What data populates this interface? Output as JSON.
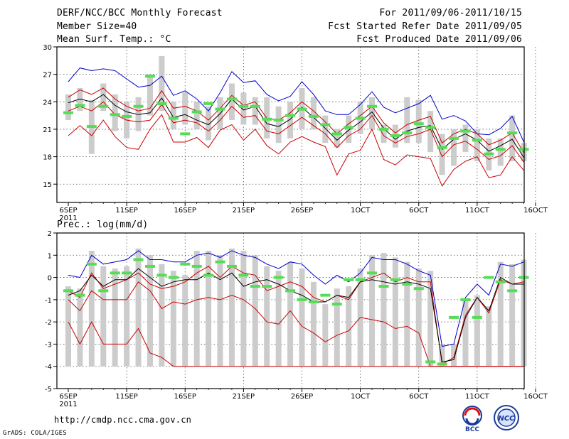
{
  "header": {
    "title": "DERF/NCC/BCC Monthly Forecast",
    "member_size": "Member Size=40",
    "period": "For 2011/09/06-2011/10/15",
    "fcst_started": "Fcst Started Refer Date 2011/09/05",
    "fcst_produced": "Fcst Produced Date 2011/09/06"
  },
  "footer": {
    "url": "http://cmdp.ncc.cma.gov.cn",
    "grads_credit": "GrADS: COLA/IGES",
    "logo1_label": "BCC",
    "logo2_label": "NCC"
  },
  "colors": {
    "max_line": "#0000cc",
    "min_line": "#cc0000",
    "mean_line": "#000000",
    "range_bar": "#cccccc",
    "marker": "#55dd55"
  },
  "chart_data": [
    {
      "type": "line",
      "title": "Mean Surf. Temp.: °C",
      "n_days": 40,
      "ylim": [
        13,
        30
      ],
      "yticks": [
        15,
        18,
        21,
        24,
        27,
        30
      ],
      "xtick_labels": [
        "6SEP",
        "11SEP",
        "16SEP",
        "21SEP",
        "26SEP",
        "1OCT",
        "6OCT",
        "11OCT",
        "16OCT"
      ],
      "year_label": "2011",
      "series": [
        {
          "name": "max",
          "values": [
            26.2,
            27.7,
            27.4,
            27.6,
            27.4,
            26.5,
            25.6,
            25.8,
            26.8,
            24.7,
            25.2,
            24.3,
            23.0,
            25.0,
            27.3,
            26.1,
            26.3,
            24.8,
            24.1,
            24.6,
            26.2,
            24.8,
            23.0,
            22.6,
            22.6,
            23.7,
            25.1,
            23.4,
            22.8,
            23.3,
            23.8,
            24.7,
            22.1,
            22.5,
            21.9,
            20.5,
            20.4,
            21.1,
            22.4,
            19.6
          ]
        },
        {
          "name": "upper",
          "values": [
            24.5,
            25.3,
            24.8,
            25.5,
            24.3,
            23.5,
            23.0,
            23.3,
            25.2,
            23.3,
            23.5,
            23.0,
            22.0,
            23.3,
            24.7,
            23.6,
            24.0,
            22.2,
            22.0,
            22.8,
            24.0,
            23.0,
            21.8,
            20.5,
            21.6,
            22.5,
            23.5,
            21.7,
            20.6,
            21.5,
            22.0,
            22.4,
            19.5,
            20.5,
            21.0,
            20.5,
            19.3,
            19.8,
            20.6,
            18.4
          ]
        },
        {
          "name": "mean",
          "values": [
            23.9,
            24.3,
            24.0,
            24.8,
            23.6,
            22.9,
            22.6,
            22.8,
            24.4,
            22.3,
            22.6,
            22.0,
            21.5,
            22.7,
            24.3,
            23.1,
            23.5,
            21.6,
            21.3,
            22.1,
            23.4,
            22.3,
            21.1,
            19.8,
            20.9,
            21.8,
            22.9,
            21.1,
            19.9,
            20.8,
            21.2,
            21.4,
            18.8,
            19.9,
            20.5,
            19.8,
            18.6,
            19.2,
            19.9,
            17.9
          ]
        },
        {
          "name": "lower",
          "values": [
            23.0,
            23.5,
            23.0,
            24.0,
            22.6,
            22.0,
            21.8,
            22.0,
            23.7,
            21.7,
            22.0,
            21.7,
            20.8,
            22.0,
            23.5,
            22.3,
            22.5,
            20.8,
            20.5,
            21.4,
            22.3,
            21.4,
            20.5,
            19.0,
            20.3,
            21.0,
            22.5,
            20.3,
            19.5,
            20.2,
            20.5,
            21.0,
            18.0,
            19.3,
            19.7,
            18.8,
            17.7,
            18.1,
            19.2,
            17.4
          ]
        },
        {
          "name": "min",
          "values": [
            20.3,
            21.4,
            20.3,
            22.0,
            20.2,
            19.0,
            18.8,
            21.0,
            22.6,
            19.6,
            19.6,
            20.1,
            19.0,
            20.9,
            21.5,
            19.8,
            21.0,
            19.2,
            18.3,
            19.6,
            20.2,
            19.6,
            19.1,
            16.0,
            18.3,
            18.7,
            21.0,
            17.7,
            17.1,
            18.2,
            18.0,
            17.8,
            14.8,
            16.6,
            17.5,
            18.0,
            15.7,
            16.0,
            18.0,
            16.5
          ]
        }
      ],
      "bars": [
        [
          22.0,
          24.8
        ],
        [
          23.0,
          25.5
        ],
        [
          18.3,
          24.2
        ],
        [
          23.0,
          26.0
        ],
        [
          20.8,
          24.8
        ],
        [
          20.0,
          24.0
        ],
        [
          20.8,
          24.5
        ],
        [
          22.5,
          27.0
        ],
        [
          23.0,
          29.0
        ],
        [
          21.0,
          24.0
        ],
        [
          21.5,
          25.0
        ],
        [
          21.0,
          24.0
        ],
        [
          19.8,
          23.5
        ],
        [
          21.0,
          24.5
        ],
        [
          22.0,
          26.0
        ],
        [
          21.5,
          25.0
        ],
        [
          21.5,
          24.5
        ],
        [
          20.0,
          24.5
        ],
        [
          19.5,
          23.5
        ],
        [
          20.0,
          24.0
        ],
        [
          21.0,
          25.5
        ],
        [
          21.0,
          24.5
        ],
        [
          19.5,
          22.5
        ],
        [
          19.0,
          21.0
        ],
        [
          19.5,
          22.5
        ],
        [
          20.5,
          24.0
        ],
        [
          21.0,
          24.5
        ],
        [
          19.5,
          21.5
        ],
        [
          19.0,
          21.5
        ],
        [
          19.5,
          24.5
        ],
        [
          19.5,
          24.2
        ],
        [
          18.5,
          23.0
        ],
        [
          16.0,
          20.5
        ],
        [
          17.0,
          21.0
        ],
        [
          18.5,
          21.5
        ],
        [
          17.5,
          21.0
        ],
        [
          16.5,
          20.0
        ],
        [
          17.0,
          20.0
        ],
        [
          17.5,
          22.5
        ],
        [
          17.5,
          19.5
        ]
      ],
      "markers": [
        22.8,
        23.6,
        21.3,
        23.5,
        22.6,
        22.4,
        23.5,
        26.8,
        23.8,
        22.2,
        20.5,
        22.9,
        23.8,
        23.2,
        24.3,
        23.5,
        23.5,
        22.1,
        22.0,
        22.5,
        23.2,
        22.4,
        21.5,
        20.5,
        21.2,
        22.2,
        23.5,
        21.0,
        20.3,
        20.6,
        21.6,
        21.2,
        19.0,
        20.0,
        20.8,
        19.8,
        18.3,
        18.8,
        20.6,
        18.8
      ]
    },
    {
      "type": "line",
      "title": "Prec.: log(mm/d)",
      "n_days": 40,
      "ylim": [
        -5,
        2
      ],
      "yticks": [
        -5,
        -4,
        -3,
        -2,
        -1,
        0,
        1,
        2
      ],
      "xtick_labels": [
        "6SEP",
        "11SEP",
        "16SEP",
        "21SEP",
        "26SEP",
        "1OCT",
        "6OCT",
        "11OCT",
        "16OCT"
      ],
      "year_label": "2011",
      "series": [
        {
          "name": "max",
          "values": [
            0.1,
            0.0,
            1.0,
            0.6,
            0.7,
            0.8,
            1.2,
            0.8,
            0.8,
            0.7,
            0.7,
            1.0,
            1.1,
            0.9,
            1.2,
            1.0,
            0.9,
            0.6,
            0.4,
            0.7,
            0.6,
            0.1,
            -0.3,
            0.1,
            -0.2,
            0.2,
            0.9,
            0.8,
            0.8,
            0.6,
            0.3,
            0.1,
            -3.1,
            -3.0,
            -0.9,
            -0.3,
            -0.8,
            0.6,
            0.5,
            0.7
          ]
        },
        {
          "name": "upper",
          "values": [
            -0.6,
            -0.9,
            0.2,
            -0.5,
            -0.3,
            -0.1,
            0.2,
            -0.3,
            -0.5,
            -0.4,
            -0.2,
            0.2,
            0.5,
            0.0,
            0.5,
            0.2,
            0.1,
            -0.6,
            -0.4,
            -0.2,
            -0.4,
            -0.9,
            -1.1,
            -0.8,
            -1.0,
            -0.2,
            0.0,
            0.2,
            -0.2,
            0.0,
            -0.2,
            -0.2,
            -3.9,
            -3.6,
            -1.7,
            -0.9,
            -1.6,
            -0.1,
            -0.3,
            -0.2
          ]
        },
        {
          "name": "mean",
          "values": [
            -0.8,
            -0.6,
            0.1,
            -0.4,
            -0.1,
            -0.1,
            0.4,
            0.0,
            -0.4,
            -0.2,
            -0.1,
            -0.1,
            0.2,
            -0.1,
            0.2,
            -0.4,
            -0.2,
            -0.1,
            -0.3,
            -0.6,
            -0.8,
            -1.1,
            -1.1,
            -0.8,
            -0.9,
            -0.2,
            -0.1,
            -0.2,
            -0.3,
            -0.2,
            -0.3,
            -0.5,
            -3.8,
            -3.7,
            -1.8,
            -0.9,
            -1.5,
            0.0,
            -0.3,
            -0.3
          ]
        },
        {
          "name": "lower",
          "values": [
            -1.0,
            -1.5,
            -0.6,
            -1.0,
            -1.0,
            -1.0,
            -0.2,
            -0.6,
            -1.4,
            -1.1,
            -1.2,
            -1.0,
            -0.9,
            -1.0,
            -0.8,
            -1.0,
            -1.4,
            -2.0,
            -2.1,
            -1.5,
            -2.2,
            -2.5,
            -2.9,
            -2.6,
            -2.4,
            -1.8,
            -1.9,
            -2.0,
            -2.3,
            -2.2,
            -2.5,
            -4.0,
            -4.0,
            -4.0,
            -4.0,
            -4.0,
            -4.0,
            -4.0,
            -4.0,
            -4.0
          ]
        },
        {
          "name": "min",
          "values": [
            -2.0,
            -3.0,
            -2.0,
            -3.0,
            -3.0,
            -3.0,
            -2.3,
            -3.4,
            -3.6,
            -4.0,
            -4.0,
            -4.0,
            -4.0,
            -4.0,
            -4.0,
            -4.0,
            -4.0,
            -4.0,
            -4.0,
            -4.0,
            -4.0,
            -4.0,
            -4.0,
            -4.0,
            -4.0,
            -4.0,
            -4.0,
            -4.0,
            -4.0,
            -4.0,
            -4.0,
            -4.0,
            -4.0,
            -4.0,
            -4.0,
            -4.0,
            -4.0,
            -4.0,
            -4.0,
            -4.0
          ]
        }
      ],
      "bars": [
        [
          -4.0,
          -0.4
        ],
        [
          -4.0,
          -0.5
        ],
        [
          -4.0,
          1.2
        ],
        [
          -4.0,
          0.5
        ],
        [
          -4.0,
          0.4
        ],
        [
          -4.0,
          0.5
        ],
        [
          -4.0,
          1.3
        ],
        [
          -4.0,
          1.0
        ],
        [
          -4.0,
          0.6
        ],
        [
          -4.0,
          0.3
        ],
        [
          -4.0,
          0.1
        ],
        [
          -4.0,
          1.2
        ],
        [
          -4.0,
          1.2
        ],
        [
          -4.0,
          1.0
        ],
        [
          -4.0,
          1.3
        ],
        [
          -4.0,
          1.2
        ],
        [
          -4.0,
          1.0
        ],
        [
          -4.0,
          0.5
        ],
        [
          -4.0,
          0.3
        ],
        [
          -4.0,
          0.7
        ],
        [
          -4.0,
          0.4
        ],
        [
          -4.0,
          -0.2
        ],
        [
          -4.0,
          -1.2
        ],
        [
          -4.0,
          -0.5
        ],
        [
          -4.0,
          -0.4
        ],
        [
          -4.0,
          0.4
        ],
        [
          -4.0,
          1.0
        ],
        [
          -4.0,
          1.1
        ],
        [
          -4.0,
          0.9
        ],
        [
          -4.0,
          0.7
        ],
        [
          -4.0,
          0.4
        ],
        [
          -4.0,
          0.3
        ],
        [
          -4.0,
          -3.0
        ],
        [
          -4.0,
          -3.0
        ],
        [
          -4.0,
          -1.0
        ],
        [
          -4.0,
          -0.8
        ],
        [
          -4.0,
          -1.3
        ],
        [
          -4.0,
          0.7
        ],
        [
          -4.0,
          0.6
        ],
        [
          -4.0,
          0.8
        ]
      ],
      "markers": [
        -0.6,
        -0.8,
        0.6,
        -0.6,
        0.2,
        0.2,
        0.8,
        0.5,
        0.1,
        0.0,
        0.6,
        0.5,
        0.1,
        0.7,
        0.5,
        0.1,
        -0.4,
        -0.4,
        0.0,
        -0.6,
        -1.0,
        -1.1,
        -0.8,
        -1.2,
        -0.1,
        -0.1,
        0.2,
        -0.4,
        -0.1,
        -0.3,
        -0.5,
        -3.8,
        -3.9,
        -1.8,
        -1.0,
        -1.8,
        0.0,
        -0.2,
        -0.6,
        0.0
      ]
    }
  ]
}
